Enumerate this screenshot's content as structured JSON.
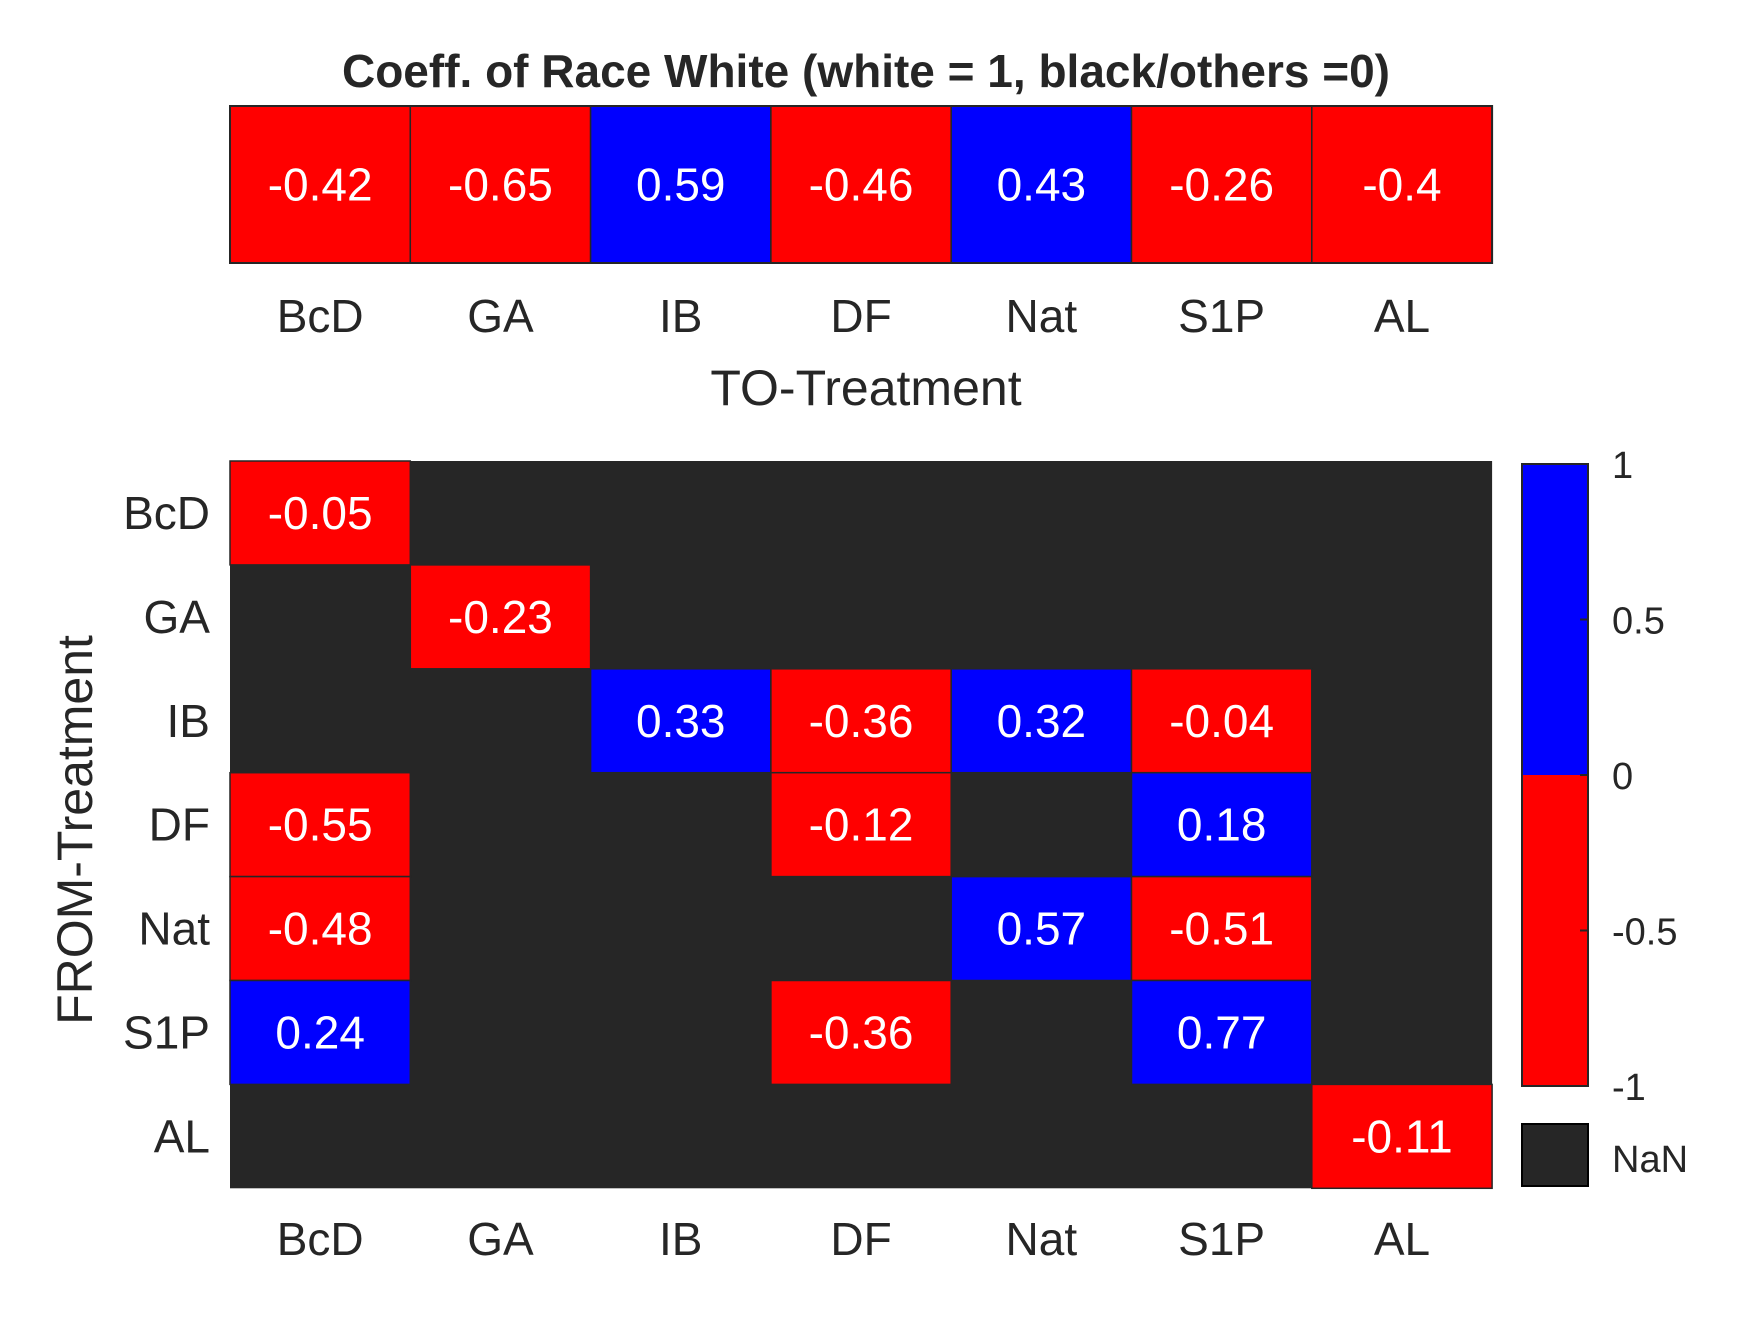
{
  "chart_data": [
    {
      "type": "heatmap",
      "title": "Coeff. of Race White (white = 1, black/others =0)",
      "xlabel": "TO-Treatment",
      "ylabel": "",
      "categories": [
        "BcD",
        "GA",
        "IB",
        "DF",
        "Nat",
        "S1P",
        "AL"
      ],
      "values": [
        -0.42,
        -0.65,
        0.59,
        -0.46,
        0.43,
        -0.26,
        -0.4
      ],
      "labels": [
        "-0.42",
        "-0.65",
        "0.59",
        "-0.46",
        "0.43",
        "-0.26",
        "-0.4"
      ]
    },
    {
      "type": "heatmap",
      "title": "",
      "xlabel": "",
      "ylabel": "FROM-Treatment",
      "x_categories": [
        "BcD",
        "GA",
        "IB",
        "DF",
        "Nat",
        "S1P",
        "AL"
      ],
      "y_categories": [
        "BcD",
        "GA",
        "IB",
        "DF",
        "Nat",
        "S1P",
        "AL"
      ],
      "values": [
        [
          -0.05,
          null,
          null,
          null,
          null,
          null,
          null
        ],
        [
          null,
          -0.23,
          null,
          null,
          null,
          null,
          null
        ],
        [
          null,
          null,
          0.33,
          -0.36,
          0.32,
          -0.04,
          null
        ],
        [
          -0.55,
          null,
          null,
          -0.12,
          null,
          0.18,
          null
        ],
        [
          -0.48,
          null,
          null,
          null,
          0.57,
          -0.51,
          null
        ],
        [
          0.24,
          null,
          null,
          -0.36,
          null,
          0.77,
          null
        ],
        [
          null,
          null,
          null,
          null,
          null,
          null,
          -0.11
        ]
      ],
      "labels": [
        [
          "-0.05",
          null,
          null,
          null,
          null,
          null,
          null
        ],
        [
          null,
          "-0.23",
          null,
          null,
          null,
          null,
          null
        ],
        [
          null,
          null,
          "0.33",
          "-0.36",
          "0.32",
          "-0.04",
          null
        ],
        [
          "-0.55",
          null,
          null,
          "-0.12",
          null,
          "0.18",
          null
        ],
        [
          "-0.48",
          null,
          null,
          null,
          "0.57",
          "-0.51",
          null
        ],
        [
          "0.24",
          null,
          null,
          "-0.36",
          null,
          "0.77",
          null
        ],
        [
          null,
          null,
          null,
          null,
          null,
          null,
          "-0.11"
        ]
      ],
      "colorbar": {
        "range": [
          -1,
          1
        ],
        "ticks": [
          1,
          0.5,
          0,
          -0.5,
          -1
        ],
        "tick_labels": [
          "1",
          "0.5",
          "0",
          "-0.5",
          "-1"
        ],
        "nan_label": "NaN"
      }
    }
  ],
  "colors": {
    "positive": "#0000ff",
    "negative": "#ff0000",
    "nan": "#262626",
    "text": "#262626",
    "cell_text": "#ffffff"
  }
}
